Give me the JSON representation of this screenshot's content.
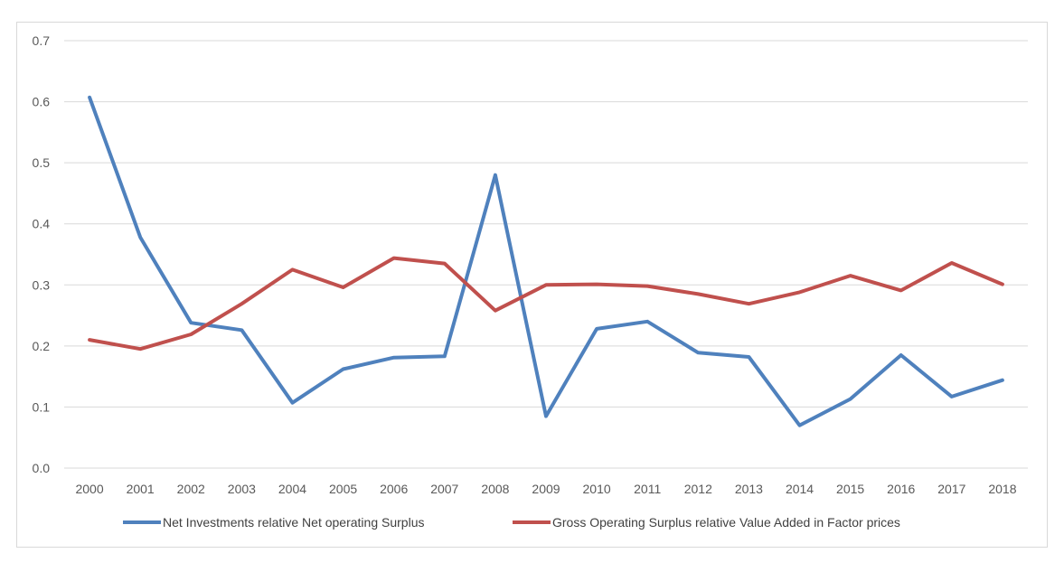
{
  "chart_data": {
    "type": "line",
    "title": "",
    "xlabel": "",
    "ylabel": "",
    "ylim": [
      0,
      0.7
    ],
    "yticks": [
      "0.0",
      "0.1",
      "0.2",
      "0.3",
      "0.4",
      "0.5",
      "0.6",
      "0.7"
    ],
    "categories": [
      "2000",
      "2001",
      "2002",
      "2003",
      "2004",
      "2005",
      "2006",
      "2007",
      "2008",
      "2009",
      "2010",
      "2011",
      "2012",
      "2013",
      "2014",
      "2015",
      "2016",
      "2017",
      "2018"
    ],
    "grid": true,
    "legend_position": "bottom",
    "series": [
      {
        "name": "Net Investments relative Net operating Surplus",
        "color": "#4f81bd",
        "values": [
          0.607,
          0.378,
          0.238,
          0.226,
          0.107,
          0.162,
          0.181,
          0.183,
          0.48,
          0.085,
          0.228,
          0.24,
          0.189,
          0.182,
          0.07,
          0.113,
          0.185,
          0.117,
          0.144
        ]
      },
      {
        "name": "Gross Operating Surplus relative Value Added in Factor prices",
        "color": "#c0504d",
        "values": [
          0.21,
          0.195,
          0.219,
          0.269,
          0.325,
          0.296,
          0.344,
          0.335,
          0.258,
          0.3,
          0.301,
          0.298,
          0.285,
          0.269,
          0.288,
          0.315,
          0.291,
          0.336,
          0.301
        ]
      }
    ]
  }
}
